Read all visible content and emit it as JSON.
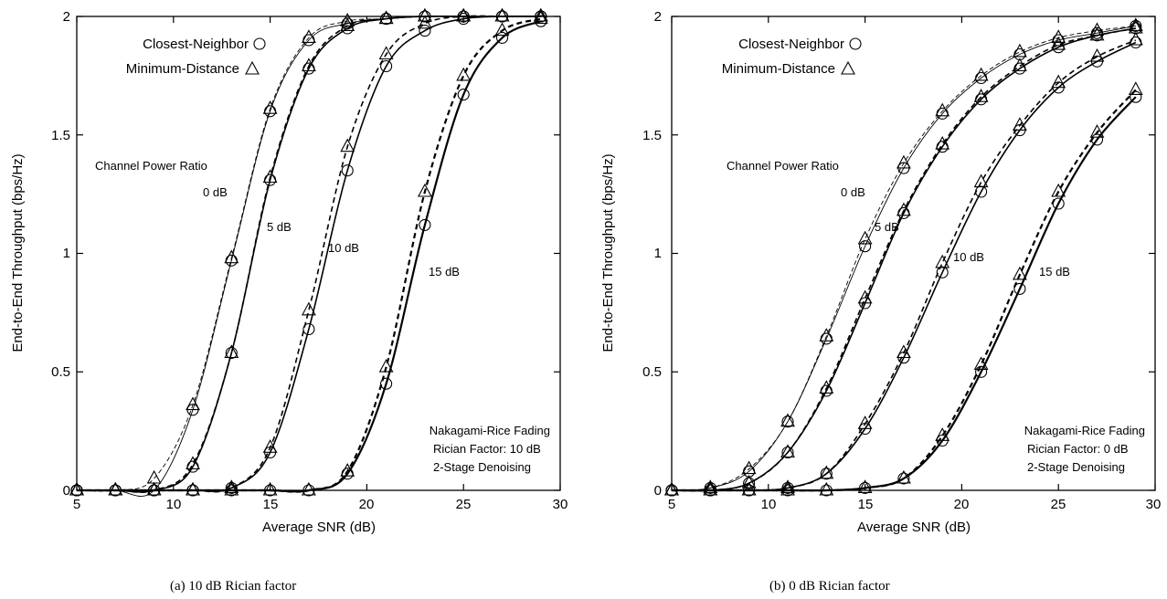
{
  "chart_data": [
    {
      "type": "line",
      "caption": "(a) 10 dB Rician factor",
      "xlabel": "Average SNR (dB)",
      "ylabel": "End-to-End Throughput (bps/Hz)",
      "xlim": [
        5,
        30
      ],
      "ylim": [
        0,
        2
      ],
      "xticks": [
        "5",
        "10",
        "15",
        "20",
        "25",
        "30"
      ],
      "yticks": [
        "0",
        "0.5",
        "1",
        "1.5",
        "2"
      ],
      "legend": {
        "placement": "top-left",
        "entries": [
          {
            "label": "Closest-Neighbor",
            "marker": "circle"
          },
          {
            "label": "Minimum-Distance",
            "marker": "triangle"
          }
        ]
      },
      "annotations": {
        "group_title": "Channel Power Ratio",
        "curve_labels": [
          "0 dB",
          "5 dB",
          "10 dB",
          "15 dB"
        ],
        "info": [
          "Nakagami-Rice Fading",
          "Rician Factor: 10 dB",
          "2-Stage Denoising"
        ]
      },
      "x": [
        5,
        7,
        9,
        11,
        13,
        15,
        17,
        19,
        21,
        23,
        25,
        27,
        29
      ],
      "series": [
        {
          "group": "0 dB",
          "marker": "circle",
          "values": [
            0,
            0,
            0,
            0.34,
            0.97,
            1.6,
            1.9,
            1.97,
            1.99,
            2.0,
            2.0,
            2.0,
            2.0
          ]
        },
        {
          "group": "0 dB",
          "marker": "triangle",
          "values": [
            0,
            0,
            0.05,
            0.36,
            0.98,
            1.61,
            1.91,
            1.98,
            1.99,
            2.0,
            2.0,
            2.0,
            2.0
          ]
        },
        {
          "group": "5 dB",
          "marker": "circle",
          "values": [
            0,
            0,
            0,
            0.1,
            0.58,
            1.31,
            1.78,
            1.95,
            1.99,
            2.0,
            2.0,
            2.0,
            2.0
          ]
        },
        {
          "group": "5 dB",
          "marker": "triangle",
          "values": [
            0,
            0,
            0,
            0.11,
            0.58,
            1.32,
            1.79,
            1.96,
            1.99,
            2.0,
            2.0,
            2.0,
            2.0
          ]
        },
        {
          "group": "10 dB",
          "marker": "circle",
          "values": [
            0,
            0,
            0,
            0,
            0.01,
            0.16,
            0.68,
            1.35,
            1.79,
            1.94,
            1.99,
            2.0,
            2.0
          ]
        },
        {
          "group": "10 dB",
          "marker": "triangle",
          "values": [
            0,
            0,
            0,
            0,
            0.01,
            0.18,
            0.76,
            1.45,
            1.84,
            1.97,
            2.0,
            2.0,
            2.0
          ]
        },
        {
          "group": "15 dB",
          "marker": "circle",
          "values": [
            0,
            0,
            0,
            0,
            0,
            0,
            0,
            0.07,
            0.45,
            1.12,
            1.67,
            1.91,
            1.98
          ]
        },
        {
          "group": "15 dB",
          "marker": "triangle",
          "values": [
            0,
            0,
            0,
            0,
            0,
            0,
            0,
            0.08,
            0.52,
            1.26,
            1.75,
            1.94,
            1.99
          ]
        }
      ]
    },
    {
      "type": "line",
      "caption": "(b) 0 dB Rician factor",
      "xlabel": "Average SNR (dB)",
      "ylabel": "End-to-End Throughput (bps/Hz)",
      "xlim": [
        5,
        30
      ],
      "ylim": [
        0,
        2
      ],
      "xticks": [
        "5",
        "10",
        "15",
        "20",
        "25",
        "30"
      ],
      "yticks": [
        "0",
        "0.5",
        "1",
        "1.5",
        "2"
      ],
      "legend": {
        "placement": "top-left",
        "entries": [
          {
            "label": "Closest-Neighbor",
            "marker": "circle"
          },
          {
            "label": "Minimum-Distance",
            "marker": "triangle"
          }
        ]
      },
      "annotations": {
        "group_title": "Channel Power Ratio",
        "curve_labels": [
          "0 dB",
          "5 dB",
          "10 dB",
          "15 dB"
        ],
        "info": [
          "Nakagami-Rice Fading",
          "Rician Factor: 0 dB",
          "2-Stage Denoising"
        ]
      },
      "x": [
        5,
        7,
        9,
        11,
        13,
        15,
        17,
        19,
        21,
        23,
        25,
        27,
        29
      ],
      "series": [
        {
          "group": "0 dB",
          "marker": "circle",
          "values": [
            0,
            0.01,
            0.08,
            0.29,
            0.64,
            1.03,
            1.36,
            1.59,
            1.74,
            1.84,
            1.9,
            1.93,
            1.96
          ]
        },
        {
          "group": "0 dB",
          "marker": "triangle",
          "values": [
            0,
            0.01,
            0.09,
            0.29,
            0.65,
            1.06,
            1.38,
            1.6,
            1.75,
            1.85,
            1.91,
            1.94,
            1.96
          ]
        },
        {
          "group": "5 dB",
          "marker": "circle",
          "values": [
            0,
            0,
            0.03,
            0.16,
            0.42,
            0.79,
            1.17,
            1.45,
            1.65,
            1.78,
            1.87,
            1.92,
            1.95
          ]
        },
        {
          "group": "5 dB",
          "marker": "triangle",
          "values": [
            0,
            0,
            0.03,
            0.16,
            0.43,
            0.81,
            1.18,
            1.46,
            1.66,
            1.79,
            1.88,
            1.92,
            1.95
          ]
        },
        {
          "group": "10 dB",
          "marker": "circle",
          "values": [
            0,
            0,
            0,
            0.01,
            0.07,
            0.26,
            0.56,
            0.92,
            1.26,
            1.52,
            1.7,
            1.81,
            1.89
          ]
        },
        {
          "group": "10 dB",
          "marker": "triangle",
          "values": [
            0,
            0,
            0,
            0.01,
            0.07,
            0.28,
            0.58,
            0.96,
            1.3,
            1.54,
            1.72,
            1.83,
            1.9
          ]
        },
        {
          "group": "15 dB",
          "marker": "circle",
          "values": [
            0,
            0,
            0,
            0,
            0,
            0.01,
            0.05,
            0.21,
            0.5,
            0.85,
            1.21,
            1.48,
            1.66
          ]
        },
        {
          "group": "15 dB",
          "marker": "triangle",
          "values": [
            0,
            0,
            0,
            0,
            0,
            0.01,
            0.05,
            0.23,
            0.53,
            0.91,
            1.26,
            1.51,
            1.69
          ]
        }
      ]
    }
  ]
}
